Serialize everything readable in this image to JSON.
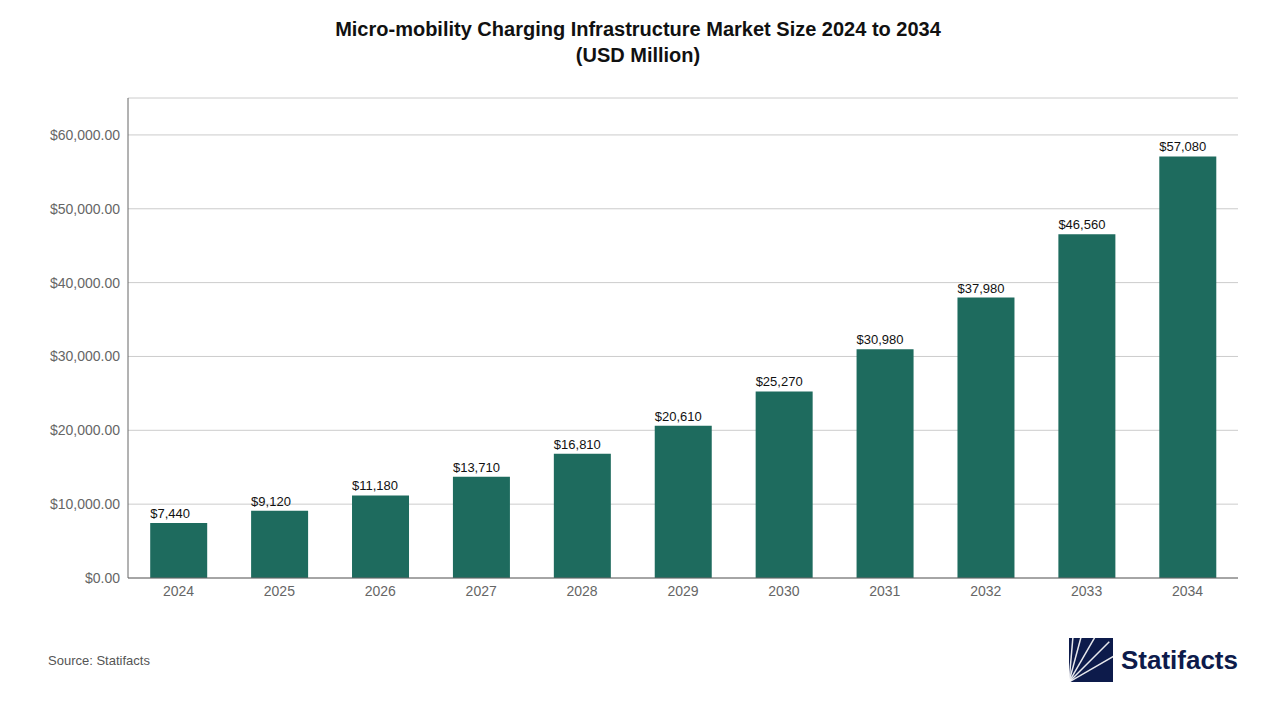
{
  "chart_data": {
    "type": "bar",
    "title": "Micro-mobility Charging Infrastructure Market Size 2024 to 2034",
    "subtitle": "(USD Million)",
    "categories": [
      "2024",
      "2025",
      "2026",
      "2027",
      "2028",
      "2029",
      "2030",
      "2031",
      "2032",
      "2033",
      "2034"
    ],
    "values": [
      7440,
      9120,
      11180,
      13710,
      16810,
      20610,
      25270,
      30980,
      37980,
      46560,
      57080
    ],
    "value_labels": [
      "$7,440",
      "$9,120",
      "$11,180",
      "$13,710",
      "$16,810",
      "$20,610",
      "$25,270",
      "$30,980",
      "$37,980",
      "$46,560",
      "$57,080"
    ],
    "data_labels": true,
    "color": "#1e6b5e",
    "ylim": [
      0,
      65000
    ],
    "yticks": [
      {
        "value": 0,
        "label": "$0.00"
      },
      {
        "value": 10000,
        "label": "$10,000.00"
      },
      {
        "value": 20000,
        "label": "$20,000.00"
      },
      {
        "value": 30000,
        "label": "$30,000.00"
      },
      {
        "value": 40000,
        "label": "$40,000.00"
      },
      {
        "value": 50000,
        "label": "$50,000.00"
      },
      {
        "value": 60000,
        "label": "$60,000.00"
      }
    ],
    "grid": true,
    "annotations": [
      "Source: Statifacts",
      "Statifacts"
    ]
  }
}
